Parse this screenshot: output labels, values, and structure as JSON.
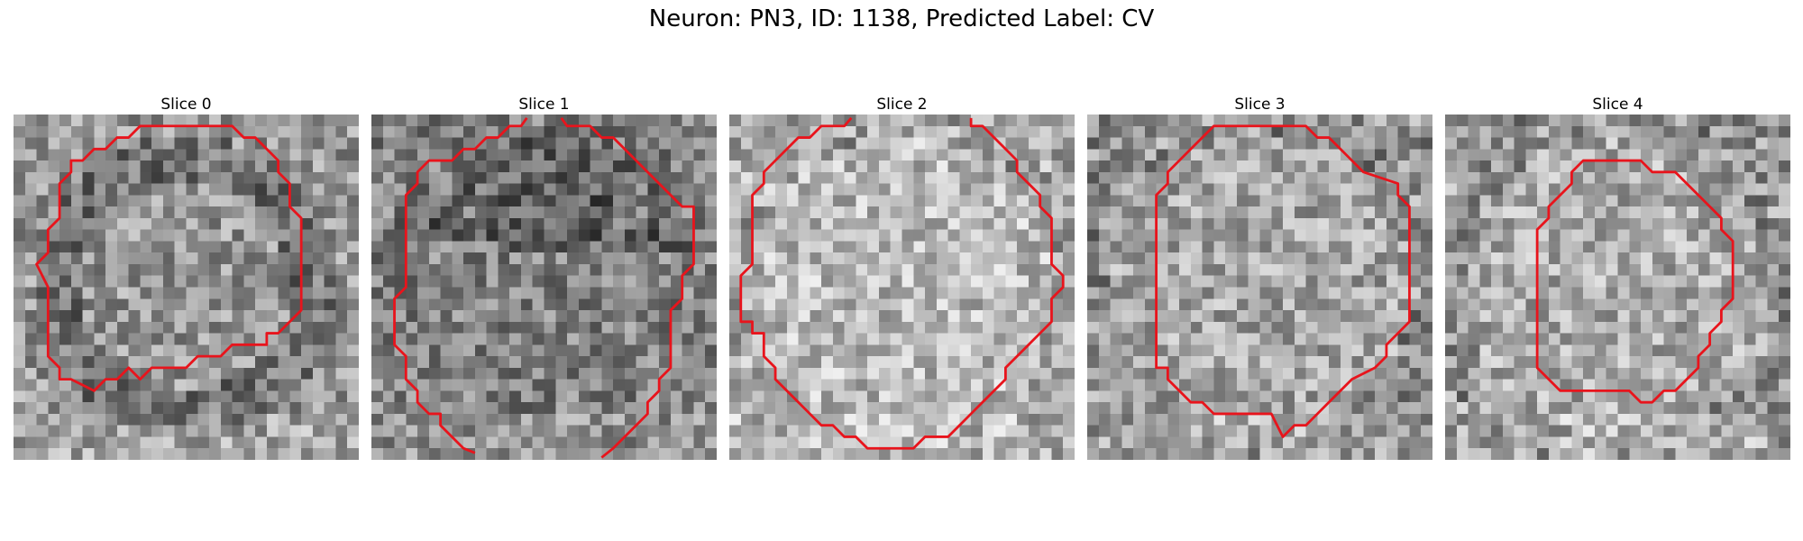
{
  "figure": {
    "title": "Neuron: PN3, ID: 1138, Predicted Label: CV"
  },
  "panels": [
    {
      "title": "Slice 0",
      "texture_seed": 11,
      "base_tone": 150,
      "dark_region": "ring"
    },
    {
      "title": "Slice 1",
      "texture_seed": 23,
      "base_tone": 130,
      "dark_region": "top"
    },
    {
      "title": "Slice 2",
      "texture_seed": 37,
      "base_tone": 185,
      "dark_region": "edge"
    },
    {
      "title": "Slice 3",
      "texture_seed": 41,
      "base_tone": 165,
      "dark_region": "edge"
    },
    {
      "title": "Slice 4",
      "texture_seed": 53,
      "base_tone": 170,
      "dark_region": "edge"
    }
  ],
  "contour_color": "#e8141c",
  "colormap": "gray"
}
